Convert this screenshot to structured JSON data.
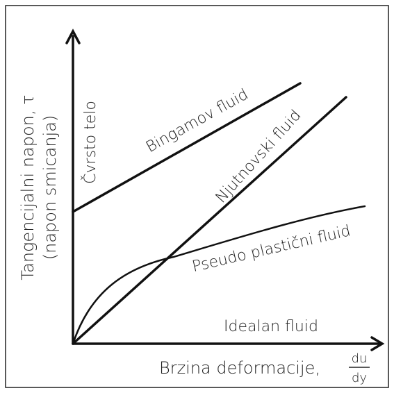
{
  "y_axis": {
    "label": "Tangencijalni napon, τ",
    "sublabel": "(napon smicanja)"
  },
  "x_axis": {
    "label": "Brzina deformacije,",
    "fraction": {
      "numerator": "du",
      "denominator": "dy"
    }
  },
  "curves": [
    {
      "label": "Čvrsto telo"
    },
    {
      "label": "Bingamov fluid"
    },
    {
      "label": "Njutnovski fluid"
    },
    {
      "label": "Pseudo plastični fluid"
    },
    {
      "label": "Idealan fluid"
    }
  ]
}
